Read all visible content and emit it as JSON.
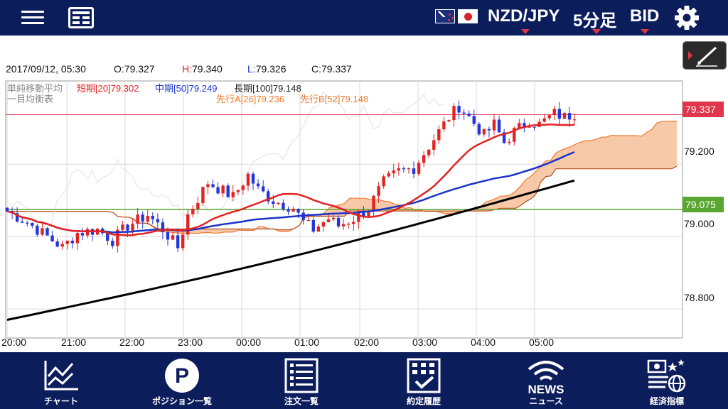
{
  "header": {
    "pair": "NZD/JPY",
    "timeframe": "5分足",
    "side": "BID"
  },
  "quote": {
    "datetime": "2017/09/12, 05:30",
    "open": "O:79.327",
    "high_prefix": "H:",
    "high_value": "79.340",
    "low_prefix": "L:",
    "low_value": "79.326",
    "close": "C:79.337"
  },
  "legend": {
    "sma_title": "単純移動平均",
    "sma_short": "短期[20]79.302",
    "sma_mid": "中期[50]79.249",
    "sma_long": "長期[100]79.148",
    "ichimoku_title": "一目均衡表",
    "span_a": "先行A[26]79.236",
    "span_b": "先行B[52]79.148"
  },
  "price_markers": {
    "current": "79.337",
    "line": "79.075"
  },
  "colors": {
    "nav_bg": "#0c1d5c",
    "sma_short": "#e32222",
    "sma_mid": "#1a33c8",
    "sma_long": "#000000",
    "cloud_fill": "#f7c09a",
    "cloud_edge": "#f07a30",
    "bull_candle": "#e32222",
    "bear_candle": "#2535d8",
    "current_price": "#e0354a",
    "green_line": "#5aa632"
  },
  "chart_data": {
    "type": "candlestick",
    "instrument": "NZD/JPY",
    "y_ticks": [
      "79.200",
      "79.000",
      "78.800"
    ],
    "x_ticks": [
      "20:00",
      "21:00",
      "22:00",
      "23:00",
      "00:00",
      "01:00",
      "02:00",
      "03:00",
      "04:00",
      "05:00"
    ],
    "ylim": [
      78.72,
      79.43
    ],
    "current_price": 79.337,
    "horizontal_line": 79.075,
    "close_path": [
      [
        0,
        79.07
      ],
      [
        4,
        79.04
      ],
      [
        8,
        79.0
      ],
      [
        11,
        78.97
      ],
      [
        14,
        79.01
      ],
      [
        18,
        79.02
      ],
      [
        21,
        78.99
      ],
      [
        24,
        79.03
      ],
      [
        28,
        79.06
      ],
      [
        31,
        79.02
      ],
      [
        34,
        78.97
      ],
      [
        36,
        79.06
      ],
      [
        40,
        79.15
      ],
      [
        45,
        79.11
      ],
      [
        48,
        79.17
      ],
      [
        50,
        79.13
      ],
      [
        53,
        79.1
      ],
      [
        57,
        79.08
      ],
      [
        59,
        79.04
      ],
      [
        61,
        79.02
      ],
      [
        64,
        79.05
      ],
      [
        66,
        79.03
      ],
      [
        69,
        79.05
      ],
      [
        72,
        79.08
      ],
      [
        75,
        79.15
      ],
      [
        78,
        79.18
      ],
      [
        81,
        79.19
      ],
      [
        83,
        79.23
      ],
      [
        85,
        79.27
      ],
      [
        88,
        79.33
      ],
      [
        90,
        79.36
      ],
      [
        92,
        79.33
      ],
      [
        95,
        79.28
      ],
      [
        97,
        79.31
      ],
      [
        99,
        79.26
      ],
      [
        101,
        79.29
      ],
      [
        104,
        79.32
      ],
      [
        106,
        79.31
      ],
      [
        109,
        79.34
      ],
      [
        111,
        79.33
      ],
      [
        113,
        79.34
      ]
    ]
  },
  "toolbar": {
    "pen_label": ""
  },
  "nav": [
    {
      "label": "チャート"
    },
    {
      "label": "ポジション一覧"
    },
    {
      "label": "注文一覧"
    },
    {
      "label": "約定履歴"
    },
    {
      "label": "ニュース",
      "icon_text": "NEWS"
    },
    {
      "label": "経済指標"
    }
  ]
}
